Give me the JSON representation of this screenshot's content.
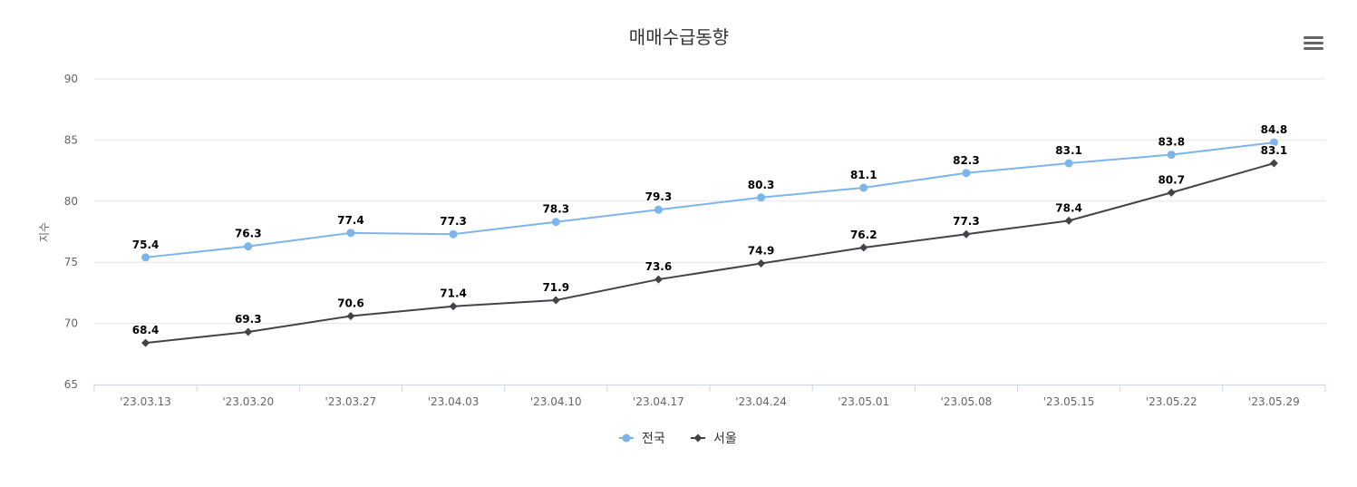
{
  "chart_data": {
    "type": "line",
    "title": "매매수급동향",
    "ylabel": "지수",
    "xlabel": "",
    "ylim": [
      65,
      90
    ],
    "yticks": [
      65,
      70,
      75,
      80,
      85,
      90
    ],
    "grid": true,
    "legend_position": "bottom-center",
    "categories": [
      "'23.03.13",
      "'23.03.20",
      "'23.03.27",
      "'23.04.03",
      "'23.04.10",
      "'23.04.17",
      "'23.04.24",
      "'23.05.01",
      "'23.05.08",
      "'23.05.15",
      "'23.05.22",
      "'23.05.29"
    ],
    "series": [
      {
        "name": "전국",
        "color": "#7cb5ec",
        "marker": "circle",
        "values": [
          75.4,
          76.3,
          77.4,
          77.3,
          78.3,
          79.3,
          80.3,
          81.1,
          82.3,
          83.1,
          83.8,
          84.8
        ]
      },
      {
        "name": "서울",
        "color": "#434348",
        "marker": "diamond",
        "values": [
          68.4,
          69.3,
          70.6,
          71.4,
          71.9,
          73.6,
          74.9,
          76.2,
          77.3,
          78.4,
          80.7,
          83.1
        ]
      }
    ]
  },
  "menu": {
    "icon": "hamburger-menu-icon"
  }
}
